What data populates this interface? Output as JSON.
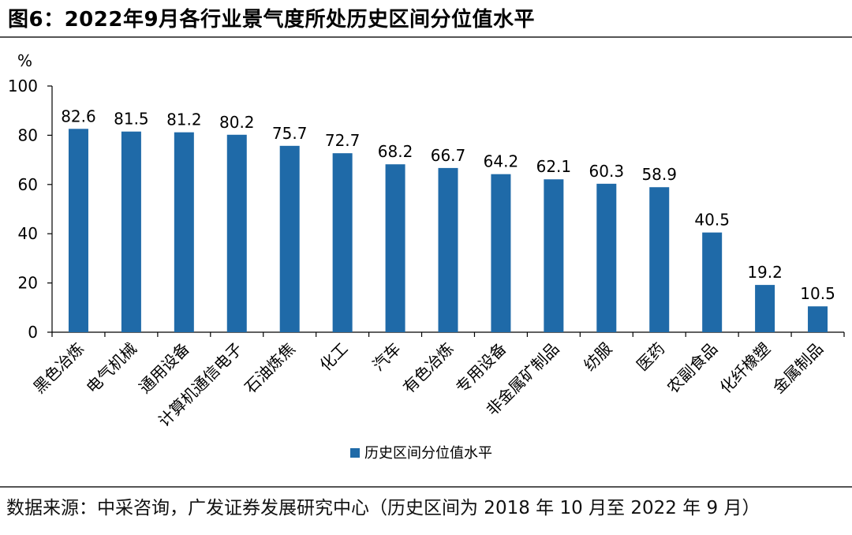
{
  "title": "图6：2022年9月各行业景气度所处历史区间分位值水平",
  "source": "数据来源：中采咨询，广发证券发展研究中心（历史区间为 2018 年 10 月至 2022 年 9 月）",
  "chart_data": {
    "type": "bar",
    "title": "2022年9月各行业景气度所处历史区间分位值水平",
    "ylabel": "%",
    "xlabel": "",
    "ylim": [
      0,
      100
    ],
    "yticks": [
      0,
      20,
      40,
      60,
      80,
      100
    ],
    "grid": false,
    "legend_position": "bottom",
    "categories": [
      "黑色冶炼",
      "电气机械",
      "通用设备",
      "计算机通信电子",
      "石油炼焦",
      "化工",
      "汽车",
      "有色冶炼",
      "专用设备",
      "非金属矿制品",
      "纺服",
      "医药",
      "农副食品",
      "化纤橡塑",
      "金属制品"
    ],
    "series": [
      {
        "name": "历史区间分位值水平",
        "color": "#1f6aa8",
        "values": [
          82.6,
          81.5,
          81.2,
          80.2,
          75.7,
          72.7,
          68.2,
          66.7,
          64.2,
          62.1,
          60.3,
          58.9,
          40.5,
          19.2,
          10.5
        ],
        "labels": [
          "82.6",
          "81.5",
          "81.2",
          "80.2",
          "75.7",
          "72.7",
          "68.2",
          "66.7",
          "64.2",
          "62.1",
          "60.3",
          "58.9",
          "40.5",
          "19.2",
          "10.5"
        ]
      }
    ]
  }
}
